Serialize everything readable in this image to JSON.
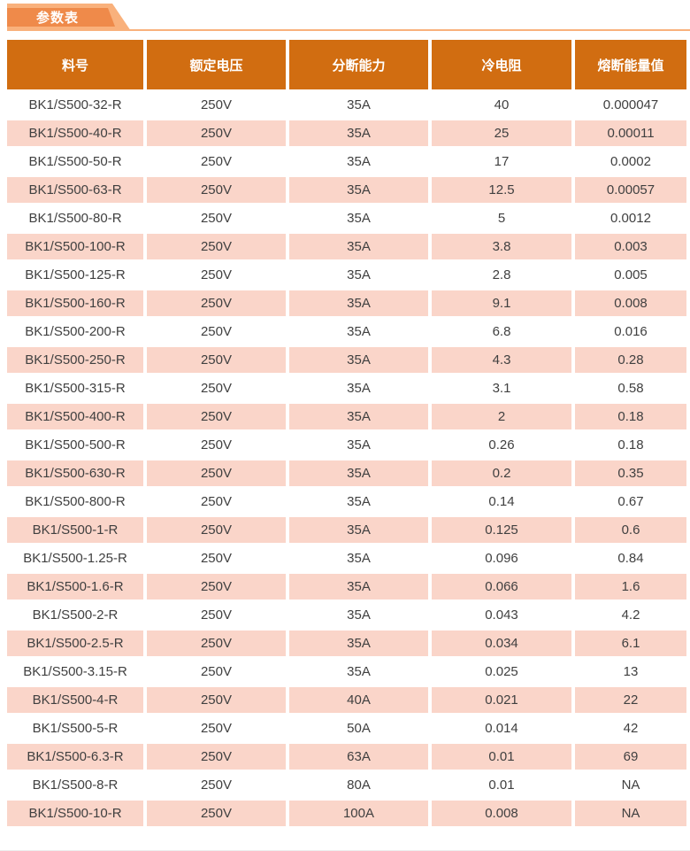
{
  "tab": {
    "label": "参数表"
  },
  "colors": {
    "header_bg": "#d16d11",
    "tab_inner": "#ef8a4a",
    "tab_outer": "#f9b17c",
    "row_pink": "#fad5c9",
    "cell_text": "#404040",
    "header_text": "#ffffff"
  },
  "table": {
    "headers": [
      "料号",
      "额定电压",
      "分断能力",
      "冷电阻",
      "熔断能量值"
    ],
    "rows": [
      [
        "BK1/S500-32-R",
        "250V",
        "35A",
        "40",
        "0.000047"
      ],
      [
        "BK1/S500-40-R",
        "250V",
        "35A",
        "25",
        "0.00011"
      ],
      [
        "BK1/S500-50-R",
        "250V",
        "35A",
        "17",
        "0.0002"
      ],
      [
        "BK1/S500-63-R",
        "250V",
        "35A",
        "12.5",
        "0.00057"
      ],
      [
        "BK1/S500-80-R",
        "250V",
        "35A",
        "5",
        "0.0012"
      ],
      [
        "BK1/S500-100-R",
        "250V",
        "35A",
        "3.8",
        "0.003"
      ],
      [
        "BK1/S500-125-R",
        "250V",
        "35A",
        "2.8",
        "0.005"
      ],
      [
        "BK1/S500-160-R",
        "250V",
        "35A",
        "9.1",
        "0.008"
      ],
      [
        "BK1/S500-200-R",
        "250V",
        "35A",
        "6.8",
        "0.016"
      ],
      [
        "BK1/S500-250-R",
        "250V",
        "35A",
        "4.3",
        "0.28"
      ],
      [
        "BK1/S500-315-R",
        "250V",
        "35A",
        "3.1",
        "0.58"
      ],
      [
        "BK1/S500-400-R",
        "250V",
        "35A",
        "2",
        "0.18"
      ],
      [
        "BK1/S500-500-R",
        "250V",
        "35A",
        "0.26",
        "0.18"
      ],
      [
        "BK1/S500-630-R",
        "250V",
        "35A",
        "0.2",
        "0.35"
      ],
      [
        "BK1/S500-800-R",
        "250V",
        "35A",
        "0.14",
        "0.67"
      ],
      [
        "BK1/S500-1-R",
        "250V",
        "35A",
        "0.125",
        "0.6"
      ],
      [
        "BK1/S500-1.25-R",
        "250V",
        "35A",
        "0.096",
        "0.84"
      ],
      [
        "BK1/S500-1.6-R",
        "250V",
        "35A",
        "0.066",
        "1.6"
      ],
      [
        "BK1/S500-2-R",
        "250V",
        "35A",
        "0.043",
        "4.2"
      ],
      [
        "BK1/S500-2.5-R",
        "250V",
        "35A",
        "0.034",
        "6.1"
      ],
      [
        "BK1/S500-3.15-R",
        "250V",
        "35A",
        "0.025",
        "13"
      ],
      [
        "BK1/S500-4-R",
        "250V",
        "40A",
        "0.021",
        "22"
      ],
      [
        "BK1/S500-5-R",
        "250V",
        "50A",
        "0.014",
        "42"
      ],
      [
        "BK1/S500-6.3-R",
        "250V",
        "63A",
        "0.01",
        "69"
      ],
      [
        "BK1/S500-8-R",
        "250V",
        "80A",
        "0.01",
        "NA"
      ],
      [
        "BK1/S500-10-R",
        "250V",
        "100A",
        "0.008",
        "NA"
      ]
    ]
  }
}
